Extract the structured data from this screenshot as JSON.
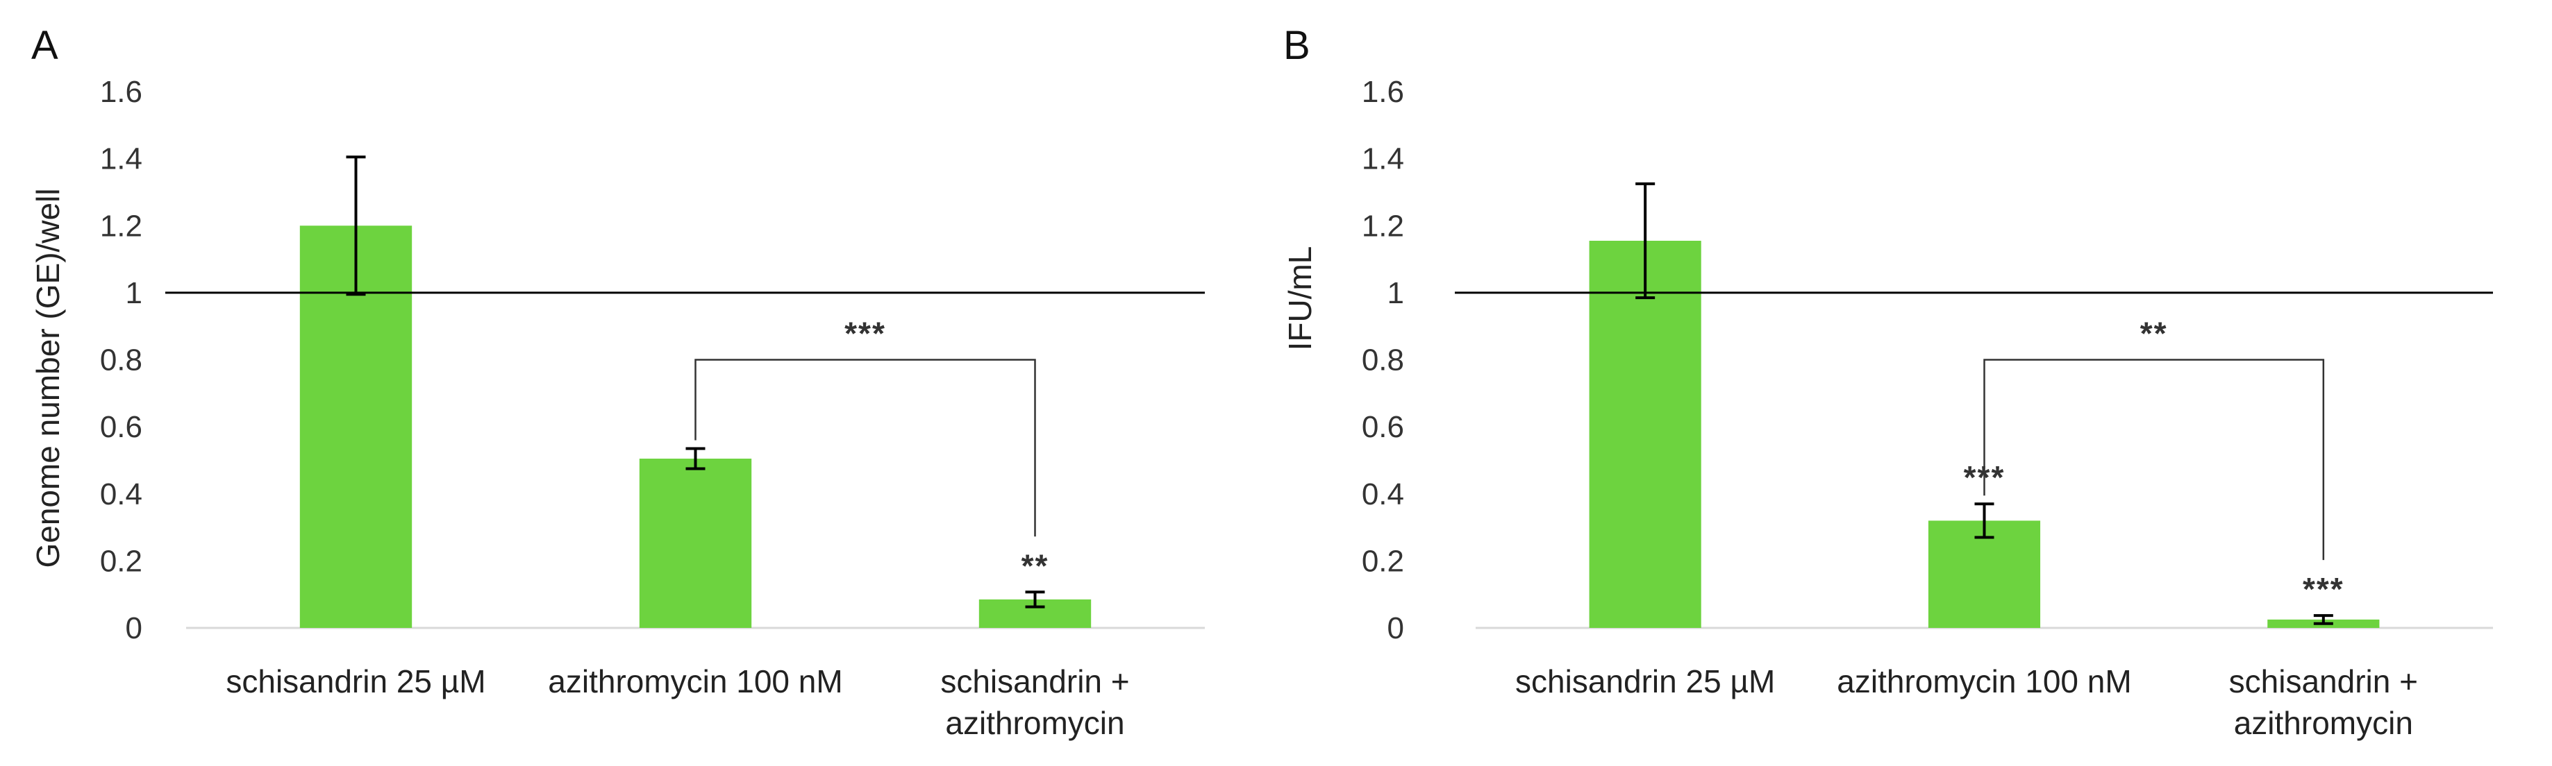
{
  "colors": {
    "bar": "#6DD33F",
    "axis": "#D9D9D9",
    "ref_line": "#000000",
    "text": "#222222"
  },
  "chart_data": [
    {
      "panel_label": "A",
      "type": "bar",
      "ylabel": "Genome number (GE)/well",
      "ylim": [
        0,
        1.6
      ],
      "yticks": [
        "0",
        "0.2",
        "0.4",
        "0.6",
        "0.8",
        "1",
        "1.2",
        "1.4",
        "1.6"
      ],
      "reference_line": 1,
      "categories": [
        {
          "line1": "schisandrin 25 µM",
          "line2": ""
        },
        {
          "line1": "azithromycin 100 nM",
          "line2": ""
        },
        {
          "line1": "schisandrin +",
          "line2": "azithromycin"
        }
      ],
      "values": [
        1.2,
        0.505,
        0.085
      ],
      "errors": [
        0.205,
        0.03,
        0.022
      ],
      "bar_annotations": [
        "",
        "",
        "**"
      ],
      "bracket": {
        "from": 1,
        "to": 2,
        "level": 0.8,
        "label": "***"
      }
    },
    {
      "panel_label": "B",
      "type": "bar",
      "ylabel": "IFU/mL",
      "ylim": [
        0,
        1.6
      ],
      "yticks": [
        "0",
        "0.2",
        "0.4",
        "0.6",
        "0.8",
        "1",
        "1.2",
        "1.4",
        "1.6"
      ],
      "reference_line": 1,
      "categories": [
        {
          "line1": "schisandrin 25 µM",
          "line2": ""
        },
        {
          "line1": "azithromycin 100 nM",
          "line2": ""
        },
        {
          "line1": "schisandrin +",
          "line2": "azithromycin"
        }
      ],
      "values": [
        1.155,
        0.32,
        0.025
      ],
      "errors": [
        0.17,
        0.05,
        0.012
      ],
      "bar_annotations": [
        "",
        "***",
        "***"
      ],
      "bracket": {
        "from": 1,
        "to": 2,
        "level": 0.8,
        "label": "**"
      }
    }
  ]
}
